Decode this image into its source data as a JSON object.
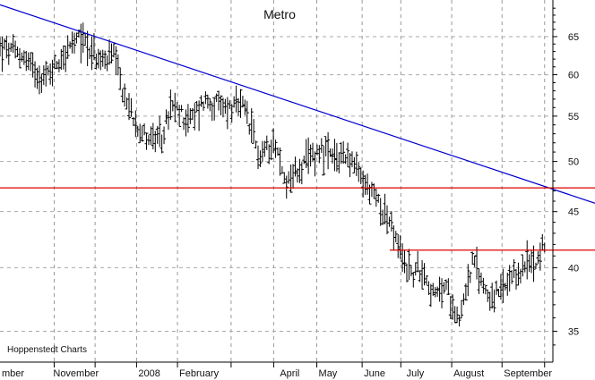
{
  "chart_data": {
    "type": "ohlc",
    "title": "Metro",
    "credit": "Hoppenstedt Charts",
    "y_scale": "log",
    "ylim": [
      32.8,
      70.2
    ],
    "y_ticks": [
      35,
      40,
      45,
      50,
      55,
      60,
      65
    ],
    "x_months": [
      {
        "label": "mber",
        "t": 0
      },
      {
        "label": "November",
        "t": 0.093
      },
      {
        "label": "2008",
        "t": 0.247
      },
      {
        "label": "February",
        "t": 0.321
      },
      {
        "label": "",
        "t": 0.418
      },
      {
        "label": "April",
        "t": 0.503
      },
      {
        "label": "May",
        "t": 0.573
      },
      {
        "label": "June",
        "t": 0.655
      },
      {
        "label": "July",
        "t": 0.732
      },
      {
        "label": "August",
        "t": 0.817
      },
      {
        "label": "September",
        "t": 0.908
      }
    ],
    "x_dividers": [
      0.098,
      0.172,
      0.247,
      0.321,
      0.418,
      0.495,
      0.573,
      0.655,
      0.725,
      0.817,
      0.908,
      0.985
    ],
    "series": [
      {
        "t": 0.0,
        "v": 63.5
      },
      {
        "t": 0.04,
        "v": 62.5
      },
      {
        "t": 0.08,
        "v": 59.5
      },
      {
        "t": 0.12,
        "v": 63
      },
      {
        "t": 0.15,
        "v": 65
      },
      {
        "t": 0.18,
        "v": 61.5
      },
      {
        "t": 0.205,
        "v": 62.5
      },
      {
        "t": 0.225,
        "v": 57
      },
      {
        "t": 0.26,
        "v": 53
      },
      {
        "t": 0.29,
        "v": 52
      },
      {
        "t": 0.31,
        "v": 56
      },
      {
        "t": 0.345,
        "v": 54.5
      },
      {
        "t": 0.37,
        "v": 57
      },
      {
        "t": 0.4,
        "v": 56
      },
      {
        "t": 0.44,
        "v": 56
      },
      {
        "t": 0.47,
        "v": 50.5
      },
      {
        "t": 0.495,
        "v": 52.5
      },
      {
        "t": 0.515,
        "v": 48
      },
      {
        "t": 0.54,
        "v": 49
      },
      {
        "t": 0.58,
        "v": 51.5
      },
      {
        "t": 0.605,
        "v": 50
      },
      {
        "t": 0.625,
        "v": 51
      },
      {
        "t": 0.655,
        "v": 48
      },
      {
        "t": 0.685,
        "v": 46
      },
      {
        "t": 0.705,
        "v": 44
      },
      {
        "t": 0.725,
        "v": 41
      },
      {
        "t": 0.745,
        "v": 39.5
      },
      {
        "t": 0.765,
        "v": 40
      },
      {
        "t": 0.785,
        "v": 37.5
      },
      {
        "t": 0.805,
        "v": 38.5
      },
      {
        "t": 0.83,
        "v": 36
      },
      {
        "t": 0.855,
        "v": 40.5
      },
      {
        "t": 0.875,
        "v": 38.5
      },
      {
        "t": 0.89,
        "v": 37.5
      },
      {
        "t": 0.92,
        "v": 38.5
      },
      {
        "t": 0.945,
        "v": 40
      },
      {
        "t": 0.965,
        "v": 40.5
      },
      {
        "t": 0.98,
        "v": 41.5
      }
    ],
    "trendline": {
      "color": "#0000cc",
      "points": [
        {
          "t": 0.0,
          "v": 69.5
        },
        {
          "t": 1.0,
          "v": 45.8
        }
      ]
    },
    "support_line": {
      "color": "#dd0000",
      "value": 47.3
    },
    "resistance_line": {
      "color": "#dd0000",
      "value": 41.5,
      "t_start": 0.705,
      "t_end": 1.0
    }
  }
}
